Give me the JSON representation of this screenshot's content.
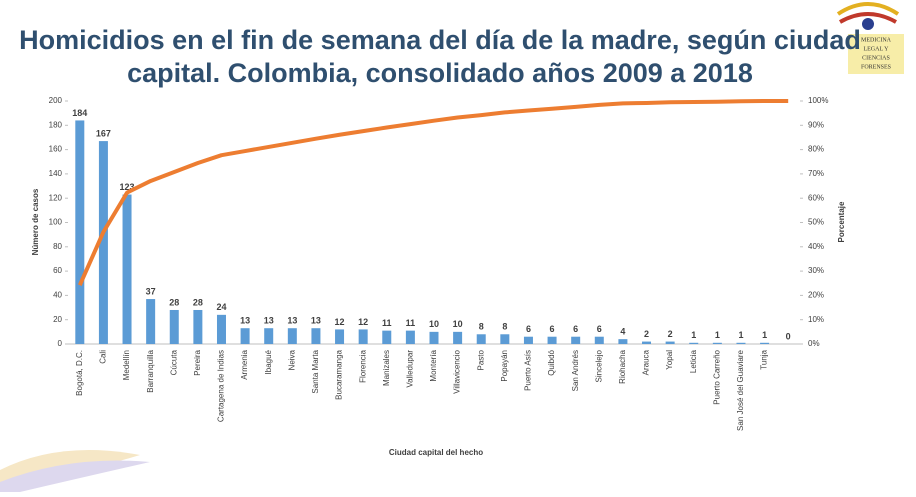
{
  "chart_data": {
    "type": "pareto",
    "title": "Homicidios en el fin de semana del día de la madre, según ciudad capital. Colombia, consolidado años 2009 a 2018",
    "xlabel": "Ciudad capital del hecho",
    "ylabel": "Número de casos",
    "y2label": "Porcentaje",
    "categories": [
      "Bogotá, D.C.",
      "Cali",
      "Medellín",
      "Barranquilla",
      "Cúcuta",
      "Pereira",
      "Cartagena de Indias",
      "Armenia",
      "Ibagué",
      "Neiva",
      "Santa Marta",
      "Bucaramanga",
      "Florencia",
      "Manizales",
      "Valledupar",
      "Montería",
      "Villavicencio",
      "Pasto",
      "Popayán",
      "Puerto Asís",
      "Quibdó",
      "San Andrés",
      "Sincelejo",
      "Riohacha",
      "Arauca",
      "Yopal",
      "Leticia",
      "Puerto Carreño",
      "San José del Guaviare",
      "Tunja",
      null
    ],
    "series": [
      {
        "color": "#5b9bd5",
        "values": [
          184,
          167,
          123,
          37,
          28,
          28,
          24,
          13,
          13,
          13,
          13,
          12,
          12,
          11,
          11,
          10,
          10,
          8,
          8,
          6,
          6,
          6,
          6,
          4,
          2,
          2,
          1,
          1,
          1,
          1,
          0
        ]
      },
      {
        "color": "#ed7d31",
        "axis": "y2",
        "values": [
          24.2,
          46.1,
          62.3,
          67.1,
          70.8,
          74.5,
          77.7,
          79.4,
          81.1,
          82.8,
          84.5,
          86.1,
          87.6,
          89.1,
          90.5,
          91.9,
          93.2,
          94.2,
          95.3,
          96.1,
          96.8,
          97.6,
          98.4,
          99.0,
          99.2,
          99.5,
          99.6,
          99.7,
          99.9,
          100,
          100
        ]
      }
    ],
    "ylim": [
      0,
      200
    ],
    "yticks": [
      0,
      20,
      40,
      60,
      80,
      100,
      120,
      140,
      160,
      180,
      200
    ],
    "y2lim": [
      0,
      100
    ],
    "y2ticks": [
      {
        "value": 0,
        "label": "0%"
      },
      {
        "value": 10,
        "label": "10%"
      },
      {
        "value": 20,
        "label": "20%"
      },
      {
        "value": 30,
        "label": "30%"
      },
      {
        "value": 40,
        "label": "40%"
      },
      {
        "value": 50,
        "label": "50%"
      },
      {
        "value": 60,
        "label": "60%"
      },
      {
        "value": 70,
        "label": "70%"
      },
      {
        "value": 80,
        "label": "80%"
      },
      {
        "value": 90,
        "label": "90%"
      },
      {
        "value": 100,
        "label": "100%"
      }
    ]
  },
  "logo": {
    "lines": [
      "MEDICINA",
      "LEGAL Y",
      "CIENCIAS",
      "FORENSES"
    ]
  }
}
